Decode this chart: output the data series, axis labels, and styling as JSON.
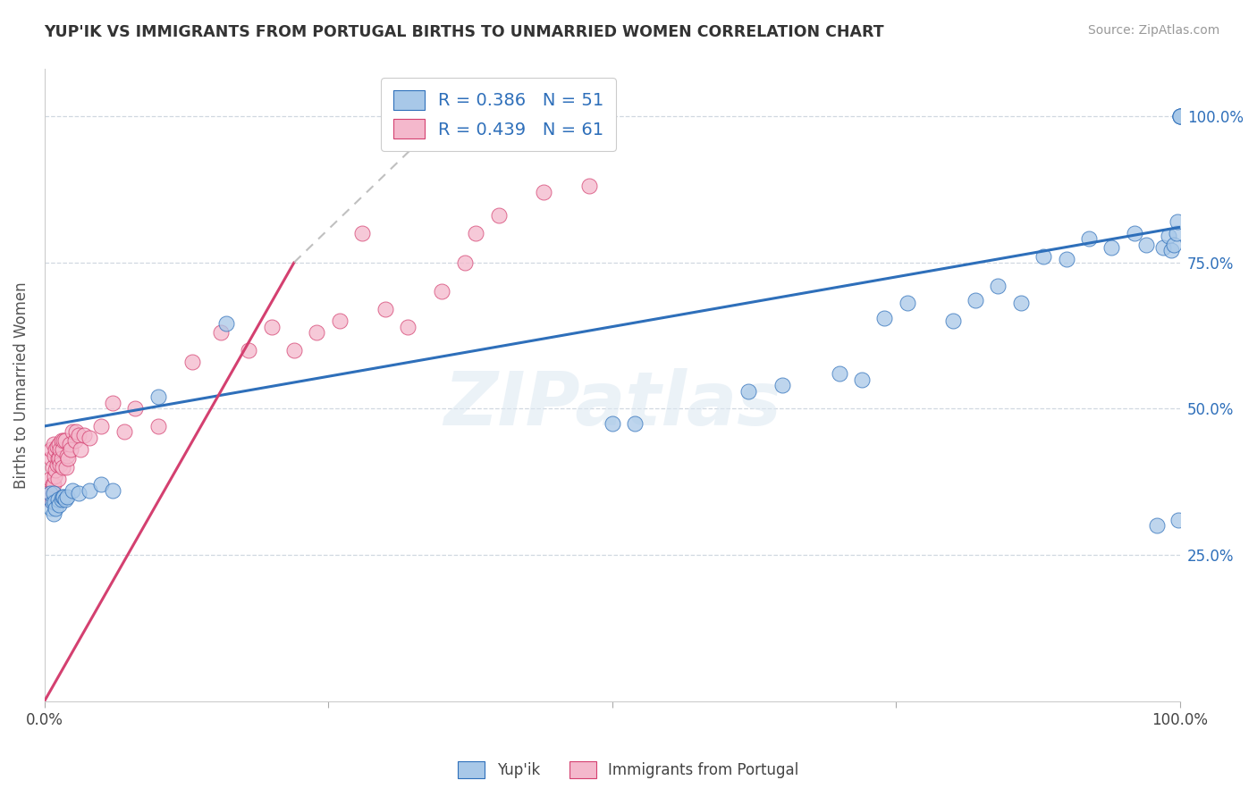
{
  "title": "YUP'IK VS IMMIGRANTS FROM PORTUGAL BIRTHS TO UNMARRIED WOMEN CORRELATION CHART",
  "source": "Source: ZipAtlas.com",
  "ylabel": "Births to Unmarried Women",
  "ytick_labels": [
    "25.0%",
    "50.0%",
    "75.0%",
    "100.0%"
  ],
  "ytick_values": [
    0.25,
    0.5,
    0.75,
    1.0
  ],
  "legend_blue_label": "R = 0.386   N = 51",
  "legend_pink_label": "R = 0.439   N = 61",
  "blue_color": "#a8c8e8",
  "pink_color": "#f4b8cc",
  "blue_line_color": "#2e6fba",
  "pink_line_color": "#d44070",
  "watermark": "ZIPatlas",
  "legend_label_yupik": "Yup'ik",
  "legend_label_portugal": "Immigrants from Portugal",
  "blue_scatter_x": [
    0.005,
    0.006,
    0.007,
    0.008,
    0.008,
    0.009,
    0.01,
    0.012,
    0.013,
    0.015,
    0.016,
    0.017,
    0.018,
    0.02,
    0.025,
    0.03,
    0.04,
    0.05,
    0.06,
    0.1,
    0.16,
    0.5,
    0.52,
    0.62,
    0.65,
    0.7,
    0.72,
    0.74,
    0.76,
    0.8,
    0.82,
    0.84,
    0.86,
    0.88,
    0.9,
    0.92,
    0.94,
    0.96,
    0.97,
    0.98,
    0.985,
    0.99,
    0.992,
    0.995,
    0.997,
    0.998,
    0.999,
    1.0,
    1.0,
    1.0,
    1.0
  ],
  "blue_scatter_y": [
    0.355,
    0.33,
    0.34,
    0.32,
    0.355,
    0.34,
    0.33,
    0.345,
    0.335,
    0.345,
    0.35,
    0.35,
    0.345,
    0.35,
    0.36,
    0.355,
    0.36,
    0.37,
    0.36,
    0.52,
    0.645,
    0.475,
    0.475,
    0.53,
    0.54,
    0.56,
    0.55,
    0.655,
    0.68,
    0.65,
    0.685,
    0.71,
    0.68,
    0.76,
    0.755,
    0.79,
    0.775,
    0.8,
    0.78,
    0.3,
    0.775,
    0.795,
    0.77,
    0.78,
    0.8,
    0.82,
    0.31,
    1.0,
    1.0,
    1.0,
    1.0
  ],
  "pink_scatter_x": [
    0.003,
    0.004,
    0.005,
    0.005,
    0.006,
    0.006,
    0.007,
    0.007,
    0.008,
    0.008,
    0.009,
    0.009,
    0.01,
    0.01,
    0.011,
    0.011,
    0.012,
    0.012,
    0.013,
    0.013,
    0.014,
    0.014,
    0.015,
    0.015,
    0.016,
    0.016,
    0.017,
    0.018,
    0.019,
    0.02,
    0.021,
    0.022,
    0.023,
    0.025,
    0.027,
    0.028,
    0.03,
    0.032,
    0.035,
    0.04,
    0.05,
    0.06,
    0.07,
    0.08,
    0.1,
    0.13,
    0.155,
    0.18,
    0.2,
    0.22,
    0.24,
    0.26,
    0.28,
    0.3,
    0.32,
    0.35,
    0.37,
    0.38,
    0.4,
    0.44,
    0.48
  ],
  "pink_scatter_y": [
    0.355,
    0.345,
    0.38,
    0.355,
    0.415,
    0.43,
    0.4,
    0.37,
    0.37,
    0.44,
    0.42,
    0.385,
    0.43,
    0.395,
    0.435,
    0.405,
    0.415,
    0.38,
    0.44,
    0.415,
    0.43,
    0.405,
    0.415,
    0.445,
    0.43,
    0.4,
    0.445,
    0.445,
    0.4,
    0.42,
    0.415,
    0.44,
    0.43,
    0.46,
    0.445,
    0.46,
    0.455,
    0.43,
    0.455,
    0.45,
    0.47,
    0.51,
    0.46,
    0.5,
    0.47,
    0.58,
    0.63,
    0.6,
    0.64,
    0.6,
    0.63,
    0.65,
    0.8,
    0.67,
    0.64,
    0.7,
    0.75,
    0.8,
    0.83,
    0.87,
    0.88
  ],
  "xlim": [
    0.0,
    1.0
  ],
  "ylim": [
    0.0,
    1.08
  ],
  "blue_line_x0": 0.0,
  "blue_line_y0": 0.47,
  "blue_line_x1": 1.0,
  "blue_line_y1": 0.81,
  "pink_line_solid_x0": 0.0,
  "pink_line_solid_y0": 0.0,
  "pink_line_solid_x1": 0.22,
  "pink_line_solid_y1": 0.75,
  "pink_line_dashed_x0": 0.22,
  "pink_line_dashed_y0": 0.75,
  "pink_line_dashed_x1": 0.38,
  "pink_line_dashed_y1": 1.05
}
